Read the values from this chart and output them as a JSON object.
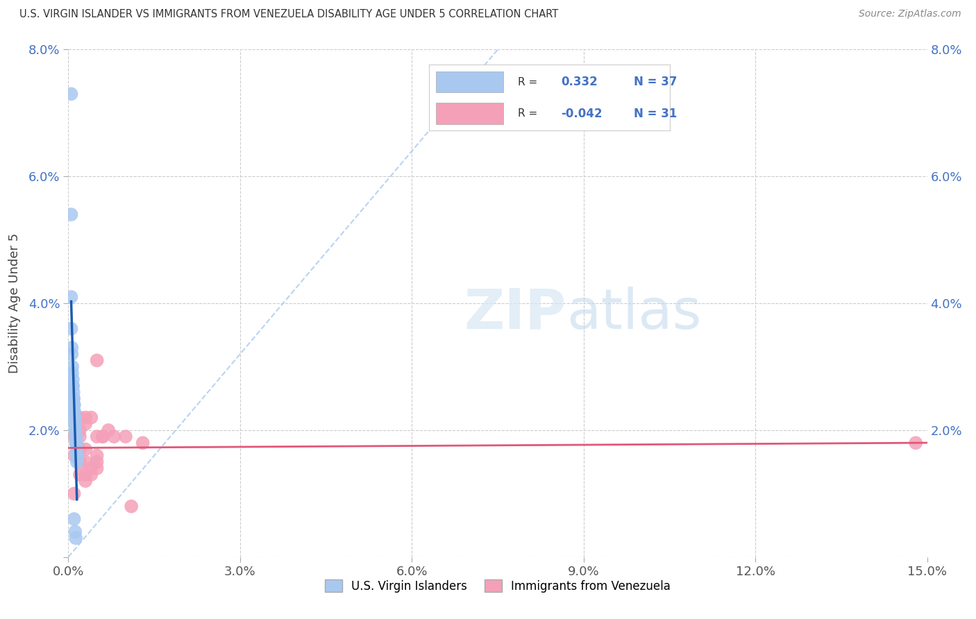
{
  "title": "U.S. VIRGIN ISLANDER VS IMMIGRANTS FROM VENEZUELA DISABILITY AGE UNDER 5 CORRELATION CHART",
  "source": "Source: ZipAtlas.com",
  "ylabel": "Disability Age Under 5",
  "xlim": [
    0,
    0.15
  ],
  "ylim": [
    0,
    0.08
  ],
  "xticks": [
    0.0,
    0.03,
    0.06,
    0.09,
    0.12,
    0.15
  ],
  "xticklabels": [
    "0.0%",
    "3.0%",
    "6.0%",
    "9.0%",
    "12.0%",
    "15.0%"
  ],
  "yticks": [
    0.0,
    0.02,
    0.04,
    0.06,
    0.08
  ],
  "yticklabels": [
    "",
    "2.0%",
    "4.0%",
    "6.0%",
    "8.0%"
  ],
  "blue_R": 0.332,
  "blue_N": 37,
  "pink_R": -0.042,
  "pink_N": 31,
  "blue_color": "#A8C8F0",
  "pink_color": "#F4A0B8",
  "blue_line_color": "#1A5CB0",
  "pink_line_color": "#E05878",
  "diag_line_color": "#A8C8F0",
  "blue_scatter": [
    [
      0.0005,
      0.073
    ],
    [
      0.0005,
      0.054
    ],
    [
      0.0005,
      0.041
    ],
    [
      0.0005,
      0.036
    ],
    [
      0.0006,
      0.033
    ],
    [
      0.0006,
      0.032
    ],
    [
      0.0007,
      0.03
    ],
    [
      0.0007,
      0.029
    ],
    [
      0.0008,
      0.028
    ],
    [
      0.0008,
      0.027
    ],
    [
      0.0008,
      0.027
    ],
    [
      0.0009,
      0.026
    ],
    [
      0.0009,
      0.025
    ],
    [
      0.0009,
      0.025
    ],
    [
      0.0009,
      0.025
    ],
    [
      0.001,
      0.024
    ],
    [
      0.001,
      0.024
    ],
    [
      0.001,
      0.023
    ],
    [
      0.001,
      0.023
    ],
    [
      0.0011,
      0.022
    ],
    [
      0.0011,
      0.022
    ],
    [
      0.0011,
      0.022
    ],
    [
      0.0011,
      0.021
    ],
    [
      0.0012,
      0.021
    ],
    [
      0.0012,
      0.02
    ],
    [
      0.0012,
      0.02
    ],
    [
      0.0013,
      0.019
    ],
    [
      0.0013,
      0.019
    ],
    [
      0.0013,
      0.018
    ],
    [
      0.0014,
      0.018
    ],
    [
      0.0014,
      0.017
    ],
    [
      0.0015,
      0.016
    ],
    [
      0.0015,
      0.016
    ],
    [
      0.0015,
      0.015
    ],
    [
      0.001,
      0.006
    ],
    [
      0.0012,
      0.004
    ],
    [
      0.0013,
      0.003
    ]
  ],
  "pink_scatter": [
    [
      0.001,
      0.019
    ],
    [
      0.001,
      0.016
    ],
    [
      0.001,
      0.01
    ],
    [
      0.002,
      0.022
    ],
    [
      0.002,
      0.02
    ],
    [
      0.002,
      0.019
    ],
    [
      0.002,
      0.017
    ],
    [
      0.002,
      0.015
    ],
    [
      0.002,
      0.013
    ],
    [
      0.003,
      0.022
    ],
    [
      0.003,
      0.021
    ],
    [
      0.003,
      0.017
    ],
    [
      0.003,
      0.015
    ],
    [
      0.003,
      0.013
    ],
    [
      0.003,
      0.012
    ],
    [
      0.004,
      0.022
    ],
    [
      0.004,
      0.014
    ],
    [
      0.004,
      0.013
    ],
    [
      0.005,
      0.031
    ],
    [
      0.005,
      0.019
    ],
    [
      0.005,
      0.016
    ],
    [
      0.005,
      0.015
    ],
    [
      0.005,
      0.014
    ],
    [
      0.006,
      0.019
    ],
    [
      0.006,
      0.019
    ],
    [
      0.007,
      0.02
    ],
    [
      0.008,
      0.019
    ],
    [
      0.01,
      0.019
    ],
    [
      0.011,
      0.008
    ],
    [
      0.013,
      0.018
    ],
    [
      0.148,
      0.018
    ]
  ]
}
